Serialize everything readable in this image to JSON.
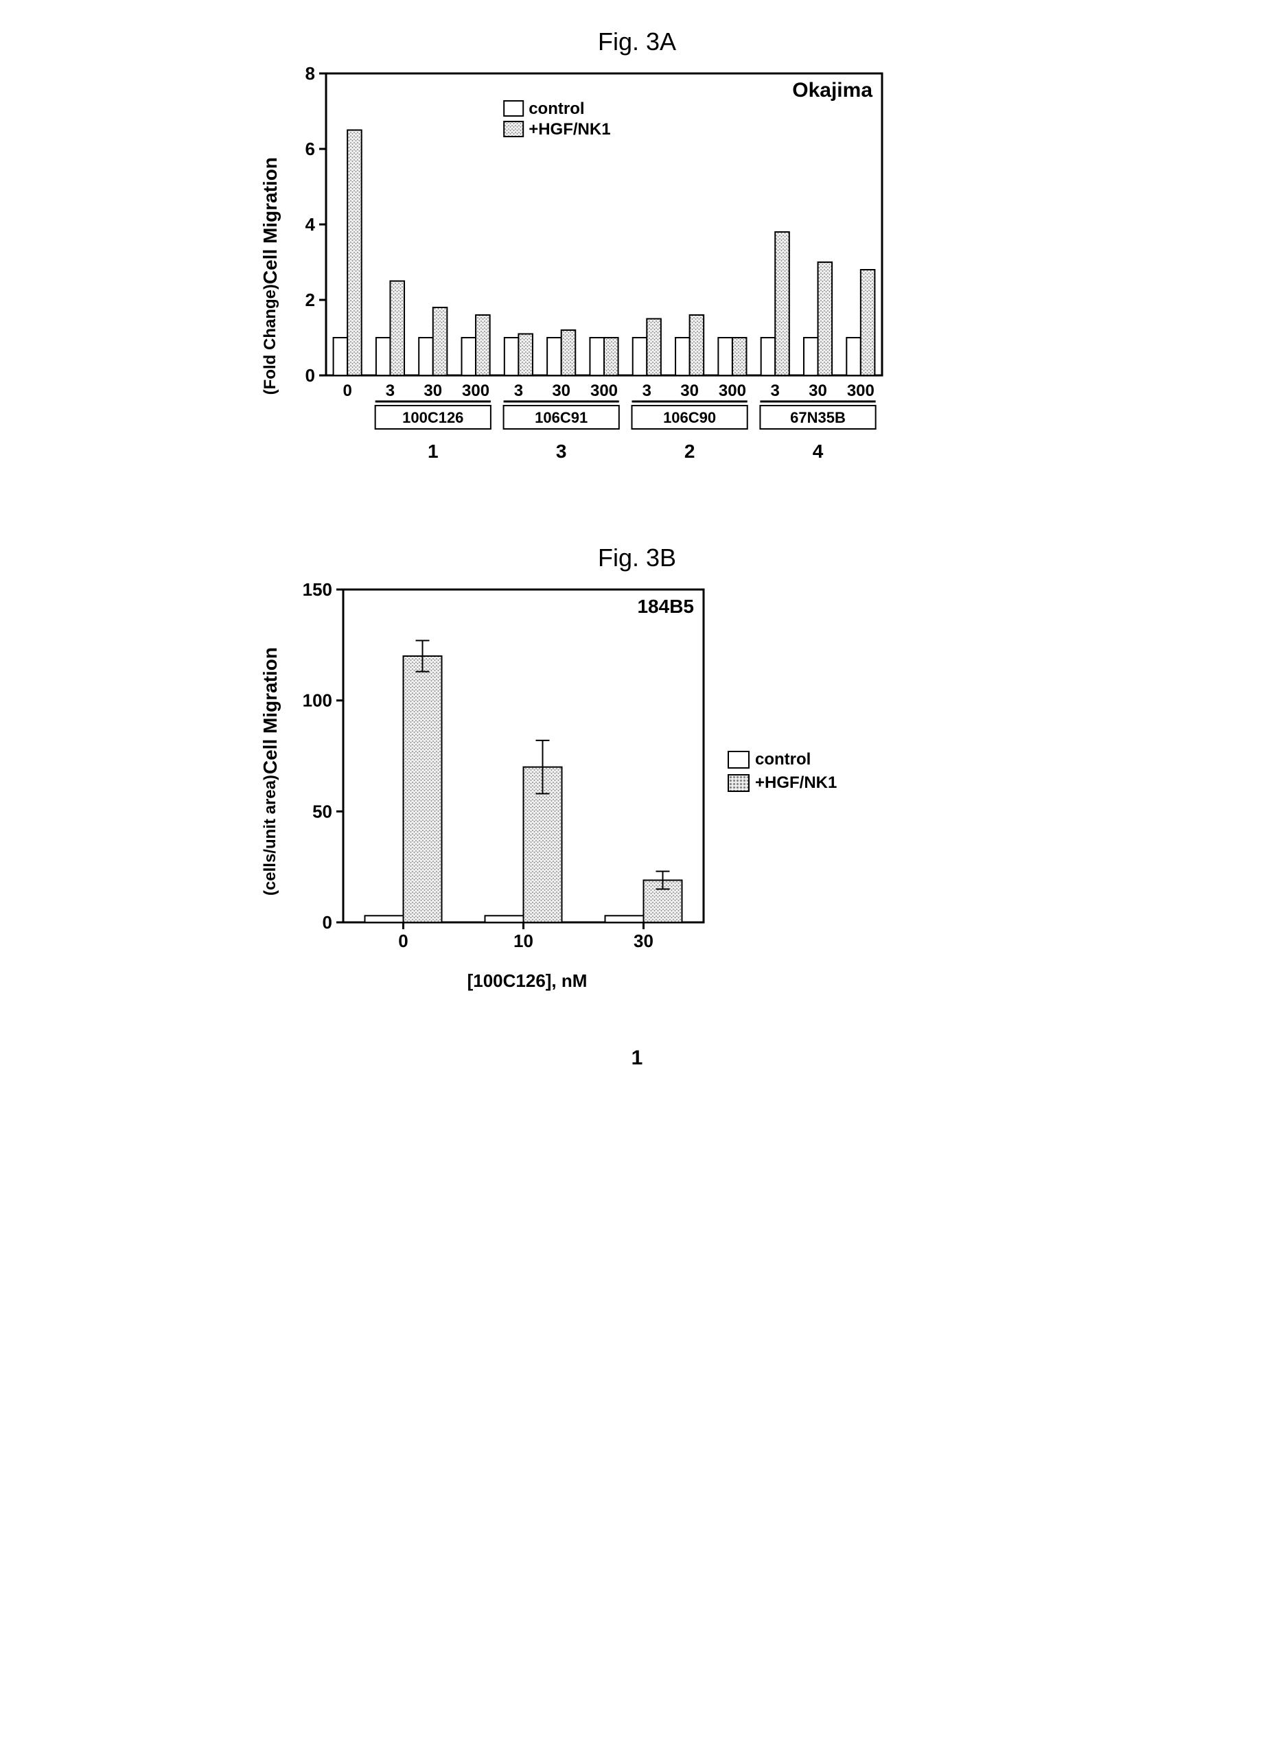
{
  "chartA": {
    "type": "bar",
    "title": "Fig. 3A",
    "title_fontsize": 36,
    "panel_label": "Okajima",
    "ylabel_line1": "Cell Migration",
    "ylabel_line2": "(Fold Change)",
    "label_fontsize": 28,
    "ylim": [
      0,
      8
    ],
    "yticks": [
      0,
      2,
      4,
      6,
      8
    ],
    "legend": [
      "control",
      "+HGF/NK1"
    ],
    "legend_position": "top-inside",
    "control_color": "#ffffff",
    "treatment_color": "#cfcfcf",
    "border_color": "#000000",
    "bar_pair_width": 0.7,
    "groups": [
      {
        "name": "0",
        "antibody_box": false,
        "pairs": [
          {
            "x": "0",
            "control": 1.0,
            "treat": 6.5
          }
        ]
      },
      {
        "name": "100C126",
        "sub": "1",
        "antibody_box": true,
        "pairs": [
          {
            "x": "3",
            "control": 1.0,
            "treat": 2.5
          },
          {
            "x": "30",
            "control": 1.0,
            "treat": 1.8
          },
          {
            "x": "300",
            "control": 1.0,
            "treat": 1.6
          }
        ]
      },
      {
        "name": "106C91",
        "sub": "3",
        "antibody_box": true,
        "pairs": [
          {
            "x": "3",
            "control": 1.0,
            "treat": 1.1
          },
          {
            "x": "30",
            "control": 1.0,
            "treat": 1.2
          },
          {
            "x": "300",
            "control": 1.0,
            "treat": 1.0
          }
        ]
      },
      {
        "name": "106C90",
        "sub": "2",
        "antibody_box": true,
        "pairs": [
          {
            "x": "3",
            "control": 1.0,
            "treat": 1.5
          },
          {
            "x": "30",
            "control": 1.0,
            "treat": 1.6
          },
          {
            "x": "300",
            "control": 1.0,
            "treat": 1.0
          }
        ]
      },
      {
        "name": "67N35B",
        "sub": "4",
        "antibody_box": true,
        "pairs": [
          {
            "x": "3",
            "control": 1.0,
            "treat": 3.8
          },
          {
            "x": "30",
            "control": 1.0,
            "treat": 3.0
          },
          {
            "x": "300",
            "control": 1.0,
            "treat": 2.8
          }
        ]
      }
    ]
  },
  "chartB": {
    "type": "bar",
    "title": "Fig. 3B",
    "title_fontsize": 36,
    "panel_label": "184B5",
    "ylabel_line1": "Cell Migration",
    "ylabel_line2": "(cells/unit area)",
    "xlabel": "[100C126], nM",
    "label_fontsize": 28,
    "ylim": [
      0,
      150
    ],
    "yticks": [
      0,
      50,
      100,
      150
    ],
    "legend": [
      "control",
      "+HGF/NK1"
    ],
    "legend_position": "right-outside",
    "control_color": "#ffffff",
    "treatment_color": "#cfcfcf",
    "border_color": "#000000",
    "pairs": [
      {
        "x": "0",
        "control": 3,
        "treat": 120,
        "treat_err": 7
      },
      {
        "x": "10",
        "control": 3,
        "treat": 70,
        "treat_err": 12
      },
      {
        "x": "30",
        "control": 3,
        "treat": 19,
        "treat_err": 4
      }
    ]
  },
  "footer_page_number": "1"
}
